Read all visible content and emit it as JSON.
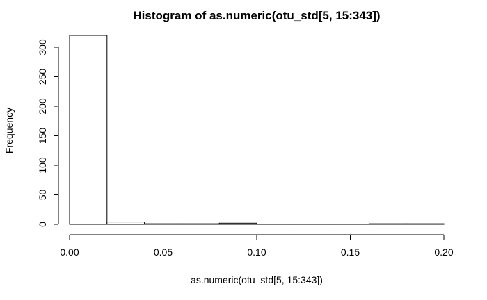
{
  "chart_data": {
    "type": "bar",
    "title": "Histogram of as.numeric(otu_std[5, 15:343])",
    "xlabel": "as.numeric(otu_std[5, 15:343])",
    "ylabel": "Frequency",
    "bins": [
      {
        "start": 0.0,
        "end": 0.02,
        "count": 320
      },
      {
        "start": 0.02,
        "end": 0.04,
        "count": 4
      },
      {
        "start": 0.04,
        "end": 0.06,
        "count": 1
      },
      {
        "start": 0.06,
        "end": 0.08,
        "count": 1
      },
      {
        "start": 0.08,
        "end": 0.1,
        "count": 2
      },
      {
        "start": 0.1,
        "end": 0.12,
        "count": 0
      },
      {
        "start": 0.12,
        "end": 0.14,
        "count": 0
      },
      {
        "start": 0.14,
        "end": 0.16,
        "count": 0
      },
      {
        "start": 0.16,
        "end": 0.18,
        "count": 1
      },
      {
        "start": 0.18,
        "end": 0.2,
        "count": 1
      }
    ],
    "x_ticks": [
      "0.00",
      "0.05",
      "0.10",
      "0.15",
      "0.20"
    ],
    "x_tick_values": [
      0.0,
      0.05,
      0.1,
      0.15,
      0.2
    ],
    "y_ticks": [
      "0",
      "50",
      "100",
      "150",
      "200",
      "250",
      "300"
    ],
    "y_tick_values": [
      0,
      50,
      100,
      150,
      200,
      250,
      300
    ],
    "xlim": [
      0,
      0.2
    ],
    "ylim": [
      0,
      320
    ],
    "grid": false
  }
}
